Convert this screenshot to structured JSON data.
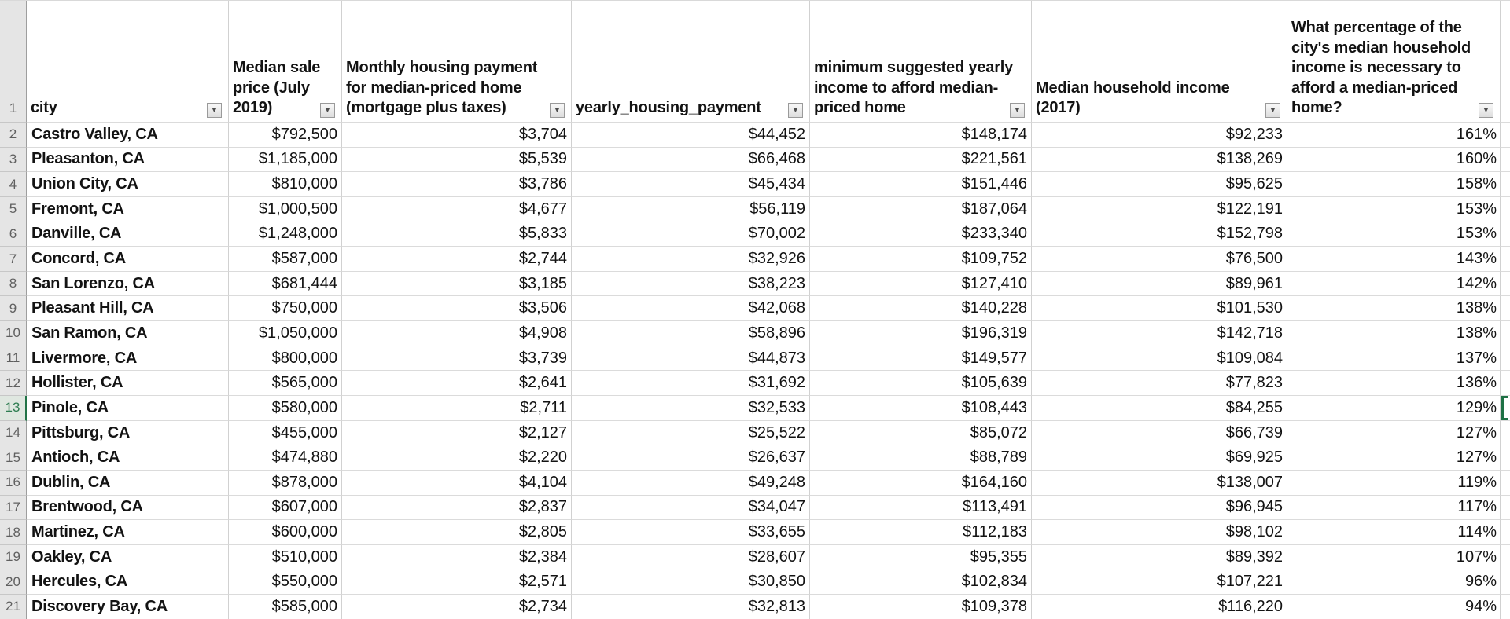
{
  "sheet": {
    "app": "spreadsheet",
    "header_row_number": "1",
    "active_row_number": 13,
    "headers": [
      "city",
      "Median sale\nprice (July\n2019)",
      "Monthly housing payment\nfor median-priced home\n(mortgage plus taxes)",
      "yearly_housing_payment",
      "minimum suggested yearly\nincome to afford median-\npriced home",
      "Median household income\n(2017)",
      "What percentage of the\ncity's median household\nincome is necessary to\nafford a median-priced\nhome?"
    ],
    "filter_icon": "▼",
    "rows": [
      {
        "number": 2,
        "city": "Castro Valley, CA",
        "median_sale_price": "$792,500",
        "monthly_payment": "$3,704",
        "yearly_payment": "$44,452",
        "min_income": "$148,174",
        "household_income": "$92,233",
        "percent": "161%"
      },
      {
        "number": 3,
        "city": "Pleasanton, CA",
        "median_sale_price": "$1,185,000",
        "monthly_payment": "$5,539",
        "yearly_payment": "$66,468",
        "min_income": "$221,561",
        "household_income": "$138,269",
        "percent": "160%"
      },
      {
        "number": 4,
        "city": "Union City, CA",
        "median_sale_price": "$810,000",
        "monthly_payment": "$3,786",
        "yearly_payment": "$45,434",
        "min_income": "$151,446",
        "household_income": "$95,625",
        "percent": "158%"
      },
      {
        "number": 5,
        "city": "Fremont, CA",
        "median_sale_price": "$1,000,500",
        "monthly_payment": "$4,677",
        "yearly_payment": "$56,119",
        "min_income": "$187,064",
        "household_income": "$122,191",
        "percent": "153%"
      },
      {
        "number": 6,
        "city": "Danville, CA",
        "median_sale_price": "$1,248,000",
        "monthly_payment": "$5,833",
        "yearly_payment": "$70,002",
        "min_income": "$233,340",
        "household_income": "$152,798",
        "percent": "153%"
      },
      {
        "number": 7,
        "city": "Concord, CA",
        "median_sale_price": "$587,000",
        "monthly_payment": "$2,744",
        "yearly_payment": "$32,926",
        "min_income": "$109,752",
        "household_income": "$76,500",
        "percent": "143%"
      },
      {
        "number": 8,
        "city": "San Lorenzo, CA",
        "median_sale_price": "$681,444",
        "monthly_payment": "$3,185",
        "yearly_payment": "$38,223",
        "min_income": "$127,410",
        "household_income": "$89,961",
        "percent": "142%"
      },
      {
        "number": 9,
        "city": "Pleasant Hill, CA",
        "median_sale_price": "$750,000",
        "monthly_payment": "$3,506",
        "yearly_payment": "$42,068",
        "min_income": "$140,228",
        "household_income": "$101,530",
        "percent": "138%"
      },
      {
        "number": 10,
        "city": "San Ramon, CA",
        "median_sale_price": "$1,050,000",
        "monthly_payment": "$4,908",
        "yearly_payment": "$58,896",
        "min_income": "$196,319",
        "household_income": "$142,718",
        "percent": "138%"
      },
      {
        "number": 11,
        "city": "Livermore, CA",
        "median_sale_price": "$800,000",
        "monthly_payment": "$3,739",
        "yearly_payment": "$44,873",
        "min_income": "$149,577",
        "household_income": "$109,084",
        "percent": "137%"
      },
      {
        "number": 12,
        "city": "Hollister, CA",
        "median_sale_price": "$565,000",
        "monthly_payment": "$2,641",
        "yearly_payment": "$31,692",
        "min_income": "$105,639",
        "household_income": "$77,823",
        "percent": "136%"
      },
      {
        "number": 13,
        "city": "Pinole, CA",
        "median_sale_price": "$580,000",
        "monthly_payment": "$2,711",
        "yearly_payment": "$32,533",
        "min_income": "$108,443",
        "household_income": "$84,255",
        "percent": "129%"
      },
      {
        "number": 14,
        "city": "Pittsburg, CA",
        "median_sale_price": "$455,000",
        "monthly_payment": "$2,127",
        "yearly_payment": "$25,522",
        "min_income": "$85,072",
        "household_income": "$66,739",
        "percent": "127%"
      },
      {
        "number": 15,
        "city": "Antioch, CA",
        "median_sale_price": "$474,880",
        "monthly_payment": "$2,220",
        "yearly_payment": "$26,637",
        "min_income": "$88,789",
        "household_income": "$69,925",
        "percent": "127%"
      },
      {
        "number": 16,
        "city": "Dublin, CA",
        "median_sale_price": "$878,000",
        "monthly_payment": "$4,104",
        "yearly_payment": "$49,248",
        "min_income": "$164,160",
        "household_income": "$138,007",
        "percent": "119%"
      },
      {
        "number": 17,
        "city": "Brentwood, CA",
        "median_sale_price": "$607,000",
        "monthly_payment": "$2,837",
        "yearly_payment": "$34,047",
        "min_income": "$113,491",
        "household_income": "$96,945",
        "percent": "117%"
      },
      {
        "number": 18,
        "city": "Martinez, CA",
        "median_sale_price": "$600,000",
        "monthly_payment": "$2,805",
        "yearly_payment": "$33,655",
        "min_income": "$112,183",
        "household_income": "$98,102",
        "percent": "114%"
      },
      {
        "number": 19,
        "city": "Oakley, CA",
        "median_sale_price": "$510,000",
        "monthly_payment": "$2,384",
        "yearly_payment": "$28,607",
        "min_income": "$95,355",
        "household_income": "$89,392",
        "percent": "107%"
      },
      {
        "number": 20,
        "city": "Hercules, CA",
        "median_sale_price": "$550,000",
        "monthly_payment": "$2,571",
        "yearly_payment": "$30,850",
        "min_income": "$102,834",
        "household_income": "$107,221",
        "percent": "96%"
      },
      {
        "number": 21,
        "city": "Discovery Bay, CA",
        "median_sale_price": "$585,000",
        "monthly_payment": "$2,734",
        "yearly_payment": "$32,813",
        "min_income": "$109,378",
        "household_income": "$116,220",
        "percent": "94%"
      }
    ],
    "colors": {
      "active_accent": "#217346",
      "row_header_bg": "#e5e5e5",
      "gridline": "#d1d1d1"
    }
  }
}
